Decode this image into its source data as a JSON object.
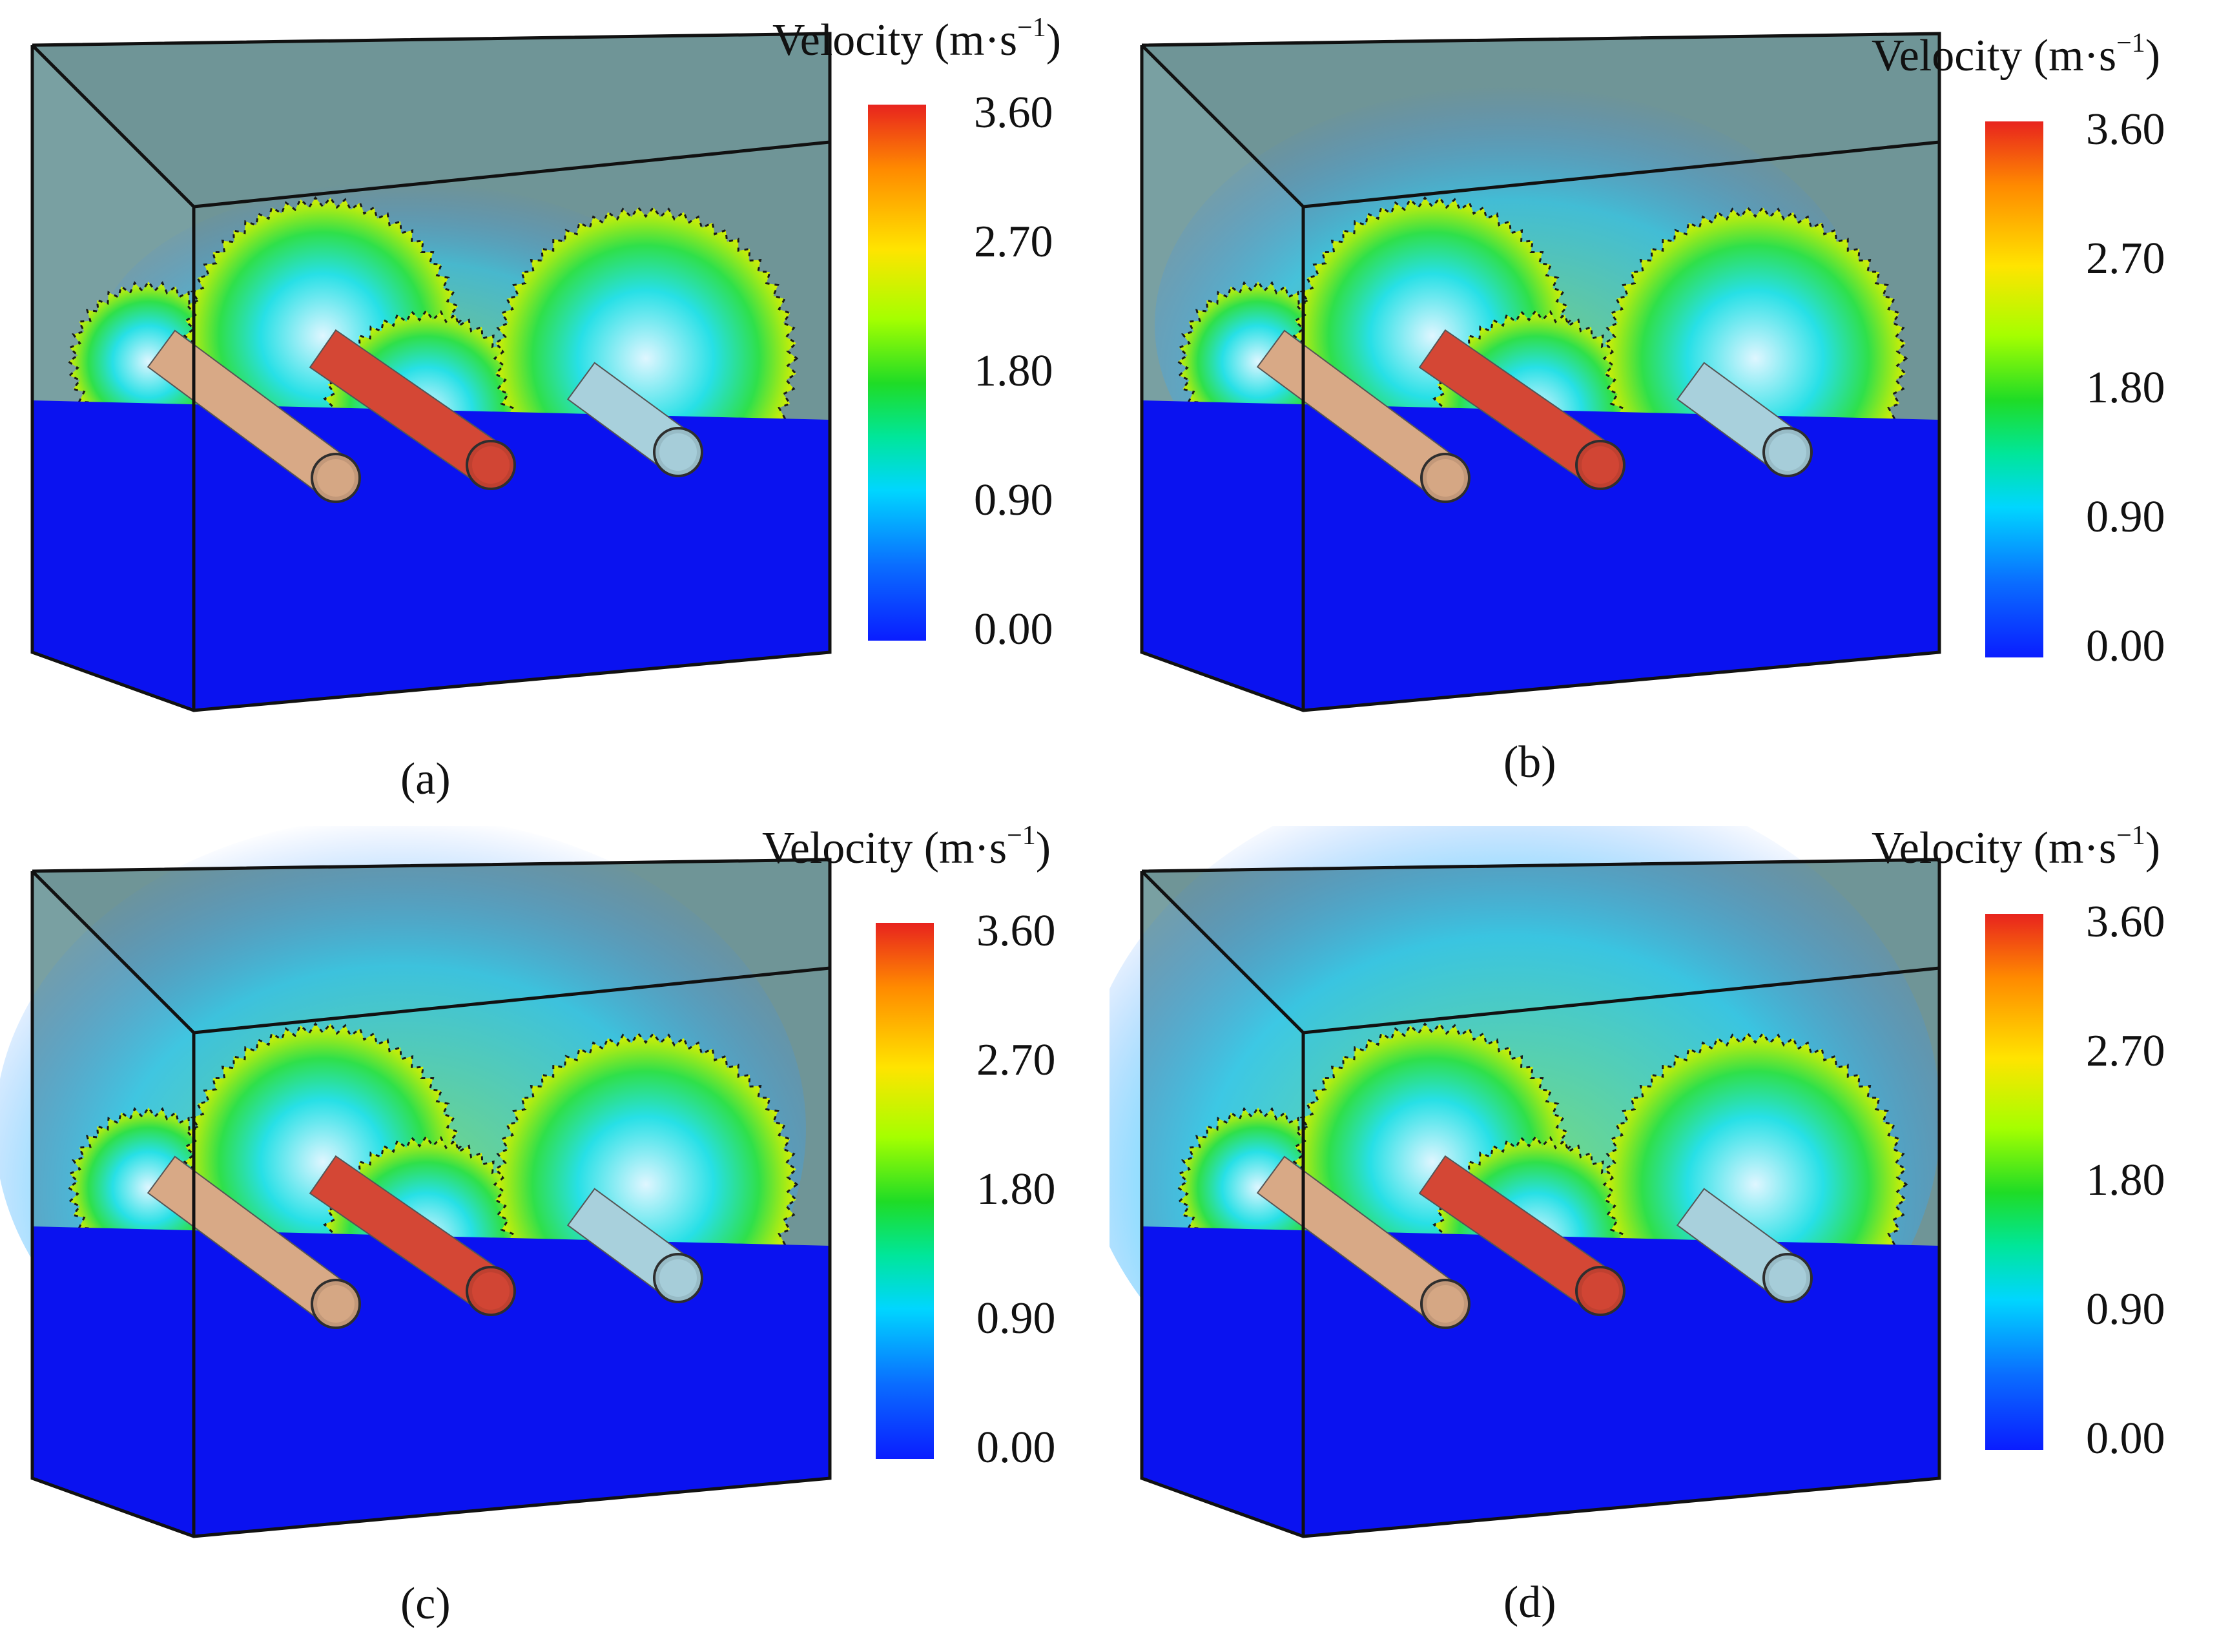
{
  "legend": {
    "title_text": "Velocity (m·s",
    "title_exp": "−1",
    "title_close": ")",
    "ticks": [
      "3.60",
      "2.70",
      "1.80",
      "0.90",
      "0.00"
    ],
    "gradient_colors": [
      "#e8231e",
      "#ff8a00",
      "#ffe400",
      "#a5ff00",
      "#1fdc26",
      "#00d6ff",
      "#0a1dff"
    ]
  },
  "panels": [
    {
      "id": "a",
      "caption": "(a)",
      "splash_level": 0.2
    },
    {
      "id": "b",
      "caption": "(b)",
      "splash_level": 0.5
    },
    {
      "id": "c",
      "caption": "(c)",
      "splash_level": 0.8
    },
    {
      "id": "d",
      "caption": "(d)",
      "splash_level": 0.95
    }
  ],
  "colors": {
    "oil_pool": "#0a12f0",
    "tank_glass": "#6f9597",
    "shaft_input": "#d8a986",
    "shaft_middle": "#d44735",
    "shaft_output": "#a8d0dc"
  }
}
